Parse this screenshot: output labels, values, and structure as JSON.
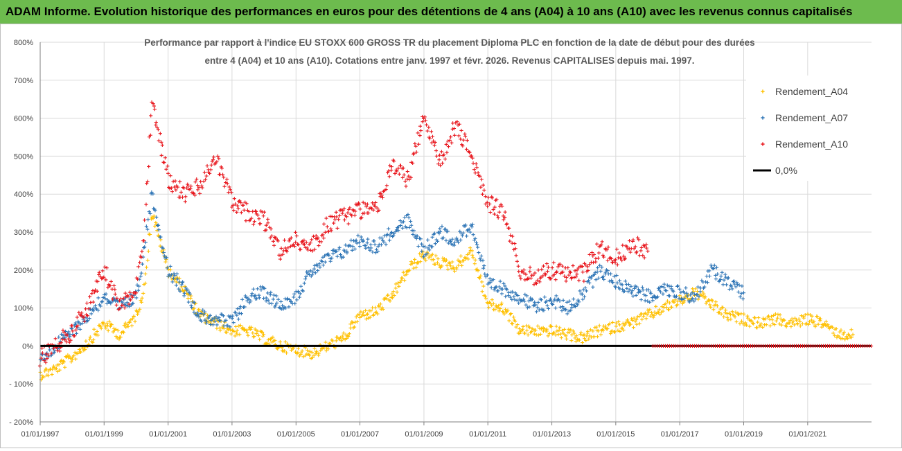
{
  "header": {
    "title": "ADAM Informe. Evolution historique des performances en euros pour des détentions de 4 ans (A04) à 10 ans (A10) avec les revenus connus capitalisés"
  },
  "colors": {
    "a04": "#ffc000",
    "a07": "#2e75b6",
    "a10": "#e8141b",
    "zero": "#000000",
    "banner": "#6dbb4e",
    "grid": "#d9d9d9"
  },
  "chart_data": {
    "type": "scatter",
    "title_line1": "Performance par rapport à l'indice EU STOXX 600 GROSS TR  du placement Diploma PLC en fonction de la date de début pour des durées",
    "title_line2": "entre 4 (A04) et 10 ans (A10).  Cotations entre janv. 1997 et févr. 2026. Revenus CAPITALISES depuis mai. 1997.",
    "xlabel": "",
    "ylabel": "",
    "x_ticks": [
      "01/01/1997",
      "01/01/1999",
      "01/01/2001",
      "01/01/2003",
      "01/01/2005",
      "01/01/2007",
      "01/01/2009",
      "01/01/2011",
      "01/01/2013",
      "01/01/2015",
      "01/01/2017",
      "01/01/2019",
      "01/01/2021"
    ],
    "y_ticks": [
      "800%",
      "700%",
      "600%",
      "500%",
      "400%",
      "300%",
      "200%",
      "100%",
      "0%",
      "- 100%",
      "- 200%"
    ],
    "ylim": [
      -200,
      800
    ],
    "xlim": [
      "1997-01-01",
      "2022-12-31"
    ],
    "grid": true,
    "legend_position": "top-right",
    "legend": [
      "Rendement_A04",
      "Rendement_A07",
      "Rendement_A10",
      "0,0%"
    ],
    "series": [
      {
        "name": "Rendement_A04",
        "color": "#ffc000",
        "x": [
          "1997-01-01",
          "1997-07-01",
          "1998-01-01",
          "1998-07-01",
          "1999-01-01",
          "1999-07-01",
          "2000-01-01",
          "2000-04-01",
          "2000-07-01",
          "2001-01-01",
          "2001-07-01",
          "2002-01-01",
          "2002-07-01",
          "2003-01-01",
          "2003-07-01",
          "2004-01-01",
          "2004-07-01",
          "2005-01-01",
          "2005-07-01",
          "2006-01-01",
          "2006-07-01",
          "2007-01-01",
          "2007-07-01",
          "2008-01-01",
          "2008-07-01",
          "2009-01-01",
          "2009-07-01",
          "2010-01-01",
          "2010-07-01",
          "2011-01-01",
          "2011-07-01",
          "2012-01-01",
          "2012-07-01",
          "2013-01-01",
          "2013-07-01",
          "2014-01-01",
          "2014-07-01",
          "2015-01-01",
          "2015-07-01",
          "2016-01-01",
          "2016-07-01",
          "2017-01-01",
          "2017-07-01",
          "2018-01-01",
          "2018-07-01",
          "2019-01-01",
          "2019-07-01",
          "2020-01-01",
          "2020-07-01",
          "2021-01-01",
          "2021-07-01",
          "2022-01-01",
          "2022-06-01"
        ],
        "values": [
          -75,
          -60,
          -30,
          10,
          60,
          30,
          80,
          150,
          350,
          200,
          150,
          80,
          60,
          40,
          40,
          20,
          0,
          -10,
          -20,
          0,
          20,
          80,
          90,
          130,
          200,
          240,
          220,
          210,
          250,
          110,
          100,
          40,
          40,
          40,
          30,
          20,
          40,
          50,
          60,
          80,
          100,
          120,
          140,
          110,
          80,
          70,
          60,
          70,
          60,
          70,
          60,
          30,
          30
        ]
      },
      {
        "name": "Rendement_A07",
        "color": "#2e75b6",
        "x": [
          "1997-01-01",
          "1997-07-01",
          "1998-01-01",
          "1998-07-01",
          "1999-01-01",
          "1999-07-01",
          "2000-01-01",
          "2000-04-01",
          "2000-07-01",
          "2001-01-01",
          "2001-07-01",
          "2002-01-01",
          "2002-07-01",
          "2003-01-01",
          "2003-07-01",
          "2004-01-01",
          "2004-07-01",
          "2005-01-01",
          "2005-07-01",
          "2006-01-01",
          "2006-07-01",
          "2007-01-01",
          "2007-07-01",
          "2008-01-01",
          "2008-07-01",
          "2009-01-01",
          "2009-07-01",
          "2010-01-01",
          "2010-07-01",
          "2011-01-01",
          "2011-07-01",
          "2012-01-01",
          "2012-07-01",
          "2013-01-01",
          "2013-07-01",
          "2014-01-01",
          "2014-07-01",
          "2015-01-01",
          "2015-07-01",
          "2016-01-01",
          "2016-07-01",
          "2017-01-01",
          "2017-07-01",
          "2018-01-01",
          "2018-07-01",
          "2019-01-01"
        ],
        "values": [
          -35,
          0,
          40,
          80,
          130,
          100,
          130,
          250,
          400,
          200,
          150,
          80,
          70,
          60,
          130,
          140,
          110,
          130,
          200,
          230,
          250,
          280,
          260,
          300,
          330,
          250,
          300,
          280,
          320,
          160,
          150,
          130,
          100,
          120,
          100,
          140,
          200,
          170,
          150,
          130,
          150,
          140,
          130,
          200,
          170,
          140
        ]
      },
      {
        "name": "Rendement_A10",
        "color": "#e8141b",
        "x": [
          "1997-01-01",
          "1997-07-01",
          "1998-01-01",
          "1998-07-01",
          "1999-01-01",
          "1999-07-01",
          "2000-01-01",
          "2000-04-01",
          "2000-07-01",
          "2001-01-01",
          "2001-07-01",
          "2002-01-01",
          "2002-07-01",
          "2003-01-01",
          "2003-07-01",
          "2004-01-01",
          "2004-07-01",
          "2005-01-01",
          "2005-07-01",
          "2006-01-01",
          "2006-07-01",
          "2007-01-01",
          "2007-07-01",
          "2008-01-01",
          "2008-07-01",
          "2009-01-01",
          "2009-07-01",
          "2010-01-01",
          "2010-07-01",
          "2011-01-01",
          "2011-07-01",
          "2012-01-01",
          "2012-07-01",
          "2013-01-01",
          "2013-07-01",
          "2014-01-01",
          "2014-07-01",
          "2015-01-01",
          "2015-07-01",
          "2016-01-01"
        ],
        "values": [
          -30,
          0,
          40,
          100,
          200,
          100,
          150,
          300,
          650,
          440,
          400,
          420,
          500,
          380,
          350,
          330,
          250,
          280,
          260,
          320,
          340,
          360,
          360,
          470,
          440,
          600,
          480,
          580,
          500,
          380,
          350,
          200,
          180,
          200,
          190,
          190,
          260,
          230,
          270,
          250
        ]
      }
    ],
    "zero_segment_a10": {
      "from": "2016-03-01",
      "to": "2022-12-31",
      "value": 0
    }
  }
}
